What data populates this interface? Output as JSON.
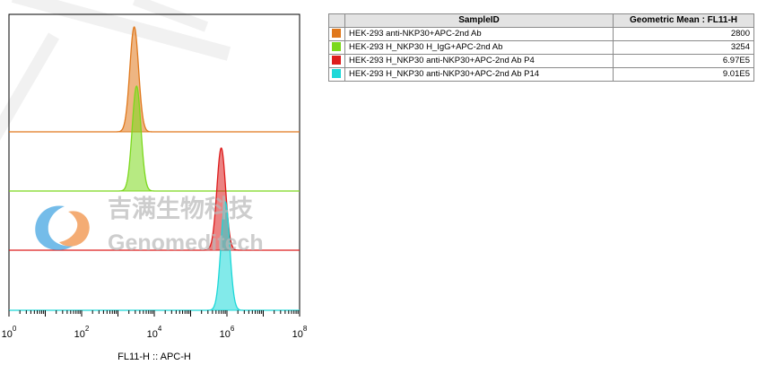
{
  "chart_data": {
    "type": "histogram",
    "xlabel": "FL11-H :: APC-H",
    "x_scale": "log",
    "xlim": [
      1,
      100000000
    ],
    "x_ticks": [
      {
        "value": 1,
        "base": "10",
        "exp": "0"
      },
      {
        "value": 100,
        "base": "10",
        "exp": "2"
      },
      {
        "value": 10000,
        "base": "10",
        "exp": "4"
      },
      {
        "value": 1000000,
        "base": "10",
        "exp": "6"
      },
      {
        "value": 100000000,
        "base": "10",
        "exp": "8"
      }
    ],
    "series": [
      {
        "sample": "HEK-293 anti-NKP30+APC-2nd Ab",
        "color": "#e0781c",
        "peak_value": 2800,
        "relative_height": 1.0
      },
      {
        "sample": "HEK-293 H_NKP30 H_IgG+APC-2nd Ab",
        "color": "#7bd81c",
        "peak_value": 3254,
        "relative_height": 1.0
      },
      {
        "sample": "HEK-293 H_NKP30 anti-NKP30+APC-2nd Ab P4",
        "color": "#dd1c1c",
        "peak_value": 697000,
        "relative_height": 1.0
      },
      {
        "sample": "HEK-293 H_NKP30 anti-NKP30+APC-2nd Ab P14",
        "color": "#1cd8d8",
        "peak_value": 901000,
        "relative_height": 1.0
      }
    ]
  },
  "table": {
    "col_sample": "SampleID",
    "col_value": "Geometric Mean : FL11-H",
    "rows": [
      {
        "color": "#e0781c",
        "sample": "HEK-293 anti-NKP30+APC-2nd Ab",
        "value": "2800"
      },
      {
        "color": "#7bd81c",
        "sample": "HEK-293 H_NKP30 H_IgG+APC-2nd Ab",
        "value": "3254"
      },
      {
        "color": "#dd1c1c",
        "sample": "HEK-293 H_NKP30 anti-NKP30+APC-2nd Ab P4",
        "value": "6.97E5"
      },
      {
        "color": "#1cd8d8",
        "sample": "HEK-293 H_NKP30 anti-NKP30+APC-2nd Ab P14",
        "value": "9.01E5"
      }
    ]
  },
  "watermark": {
    "chinese": "吉满生物科技",
    "english": "Genomeditech"
  }
}
